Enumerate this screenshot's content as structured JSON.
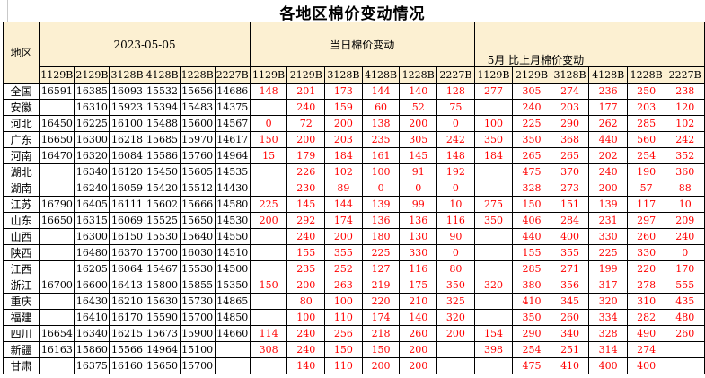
{
  "title": "各地区棉价变动情况",
  "colors": {
    "header_bg": "#FCF0D2",
    "change_color": "#FF0000",
    "border_color": "#000000"
  },
  "chart_data": {
    "type": "table",
    "title": "各地区棉价变动情况",
    "region_header": "地区",
    "groups": [
      {
        "label": "2023-05-05",
        "columns": [
          "1129B",
          "2129B",
          "3128B",
          "4128B",
          "1228B",
          "2227B"
        ]
      },
      {
        "label": "当日棉价变动",
        "columns": [
          "1129B",
          "2129B",
          "3128B",
          "4128B",
          "1228B",
          "2227B"
        ]
      },
      {
        "label": "5月 比上月棉价变动",
        "columns": [
          "1129B",
          "2129B",
          "3128B",
          "4128B",
          "1228B",
          "2227B"
        ]
      }
    ],
    "rows": [
      {
        "region": "全国",
        "prices": [
          "16591",
          "16385",
          "16093",
          "15532",
          "15656",
          "14686"
        ],
        "daily_change": [
          "148",
          "201",
          "173",
          "144",
          "140",
          "128"
        ],
        "monthly_change": [
          "277",
          "305",
          "274",
          "236",
          "250",
          "238"
        ]
      },
      {
        "region": "安徽",
        "prices": [
          "",
          "16310",
          "15923",
          "15394",
          "15483",
          "14375"
        ],
        "daily_change": [
          "",
          "240",
          "159",
          "60",
          "52",
          "75"
        ],
        "monthly_change": [
          "",
          "240",
          "203",
          "177",
          "203",
          "120"
        ]
      },
      {
        "region": "河北",
        "prices": [
          "16450",
          "16225",
          "16100",
          "15488",
          "15600",
          "14567"
        ],
        "daily_change": [
          "0",
          "72",
          "200",
          "138",
          "200",
          "0"
        ],
        "monthly_change": [
          "100",
          "225",
          "290",
          "262",
          "285",
          "102"
        ]
      },
      {
        "region": "广东",
        "prices": [
          "16650",
          "16300",
          "16218",
          "15685",
          "15970",
          "14617"
        ],
        "daily_change": [
          "150",
          "200",
          "203",
          "235",
          "305",
          "242"
        ],
        "monthly_change": [
          "350",
          "350",
          "368",
          "440",
          "560",
          "242"
        ]
      },
      {
        "region": "河南",
        "prices": [
          "16470",
          "16320",
          "16084",
          "15586",
          "15760",
          "14964"
        ],
        "daily_change": [
          "15",
          "179",
          "184",
          "161",
          "145",
          "148"
        ],
        "monthly_change": [
          "184",
          "265",
          "265",
          "202",
          "254",
          "352"
        ]
      },
      {
        "region": "湖北",
        "prices": [
          "",
          "16340",
          "16120",
          "15450",
          "15605",
          "14535"
        ],
        "daily_change": [
          "",
          "226",
          "102",
          "100",
          "91",
          "192"
        ],
        "monthly_change": [
          "",
          "475",
          "370",
          "240",
          "190",
          "360"
        ]
      },
      {
        "region": "湖南",
        "prices": [
          "",
          "16240",
          "16059",
          "15420",
          "15512",
          "14430"
        ],
        "daily_change": [
          "",
          "230",
          "89",
          "0",
          "0",
          "0"
        ],
        "monthly_change": [
          "",
          "328",
          "273",
          "200",
          "57",
          "88"
        ]
      },
      {
        "region": "江苏",
        "prices": [
          "16790",
          "16405",
          "16111",
          "15602",
          "15666",
          "14580"
        ],
        "daily_change": [
          "225",
          "145",
          "144",
          "139",
          "99",
          "10"
        ],
        "monthly_change": [
          "275",
          "150",
          "151",
          "139",
          "117",
          "10"
        ]
      },
      {
        "region": "山东",
        "prices": [
          "16650",
          "16315",
          "16069",
          "15525",
          "15650",
          "14530"
        ],
        "daily_change": [
          "200",
          "292",
          "174",
          "136",
          "136",
          "116"
        ],
        "monthly_change": [
          "350",
          "406",
          "284",
          "231",
          "297",
          "209"
        ]
      },
      {
        "region": "山西",
        "prices": [
          "",
          "16300",
          "16150",
          "15530",
          "15640",
          "14550"
        ],
        "daily_change": [
          "",
          "240",
          "200",
          "180",
          "130",
          "90"
        ],
        "monthly_change": [
          "",
          "440",
          "400",
          "330",
          "260",
          "240"
        ]
      },
      {
        "region": "陕西",
        "prices": [
          "",
          "16480",
          "16370",
          "15700",
          "16030",
          "14510"
        ],
        "daily_change": [
          "",
          "155",
          "355",
          "225",
          "330",
          "0"
        ],
        "monthly_change": [
          "",
          "155",
          "355",
          "225",
          "330",
          "0"
        ]
      },
      {
        "region": "江西",
        "prices": [
          "",
          "16205",
          "16064",
          "15467",
          "15530",
          "14500"
        ],
        "daily_change": [
          "",
          "235",
          "252",
          "127",
          "116",
          "80"
        ],
        "monthly_change": [
          "",
          "285",
          "271",
          "199",
          "220",
          "170"
        ]
      },
      {
        "region": "浙江",
        "prices": [
          "16700",
          "16600",
          "16413",
          "15800",
          "15855",
          "15350"
        ],
        "daily_change": [
          "150",
          "200",
          "263",
          "219",
          "175",
          "350"
        ],
        "monthly_change": [
          "320",
          "380",
          "356",
          "317",
          "278",
          "555"
        ]
      },
      {
        "region": "重庆",
        "prices": [
          "",
          "16430",
          "16210",
          "15630",
          "15730",
          "14865"
        ],
        "daily_change": [
          "",
          "80",
          "100",
          "220",
          "210",
          "325"
        ],
        "monthly_change": [
          "",
          "410",
          "345",
          "320",
          "310",
          "435"
        ]
      },
      {
        "region": "福建",
        "prices": [
          "",
          "16410",
          "16170",
          "15590",
          "15700",
          "14850"
        ],
        "daily_change": [
          "",
          "100",
          "110",
          "174",
          "140",
          "320"
        ],
        "monthly_change": [
          "",
          "350",
          "260",
          "334",
          "282",
          "480"
        ]
      },
      {
        "region": "四川",
        "prices": [
          "16654",
          "16340",
          "16215",
          "15673",
          "15900",
          "14660"
        ],
        "daily_change": [
          "114",
          "240",
          "256",
          "218",
          "260",
          "200"
        ],
        "monthly_change": [
          "154",
          "290",
          "340",
          "328",
          "490",
          "260"
        ]
      },
      {
        "region": "新疆",
        "prices": [
          "16163",
          "15860",
          "15566",
          "14964",
          "15100",
          ""
        ],
        "daily_change": [
          "308",
          "240",
          "150",
          "150",
          "200",
          ""
        ],
        "monthly_change": [
          "398",
          "254",
          "251",
          "314",
          "274",
          ""
        ]
      },
      {
        "region": "甘肃",
        "prices": [
          "",
          "16375",
          "16160",
          "15650",
          "15700",
          ""
        ],
        "daily_change": [
          "",
          "140",
          "110",
          "200",
          "200",
          ""
        ],
        "monthly_change": [
          "",
          "475",
          "410",
          "400",
          "400",
          ""
        ]
      }
    ]
  }
}
